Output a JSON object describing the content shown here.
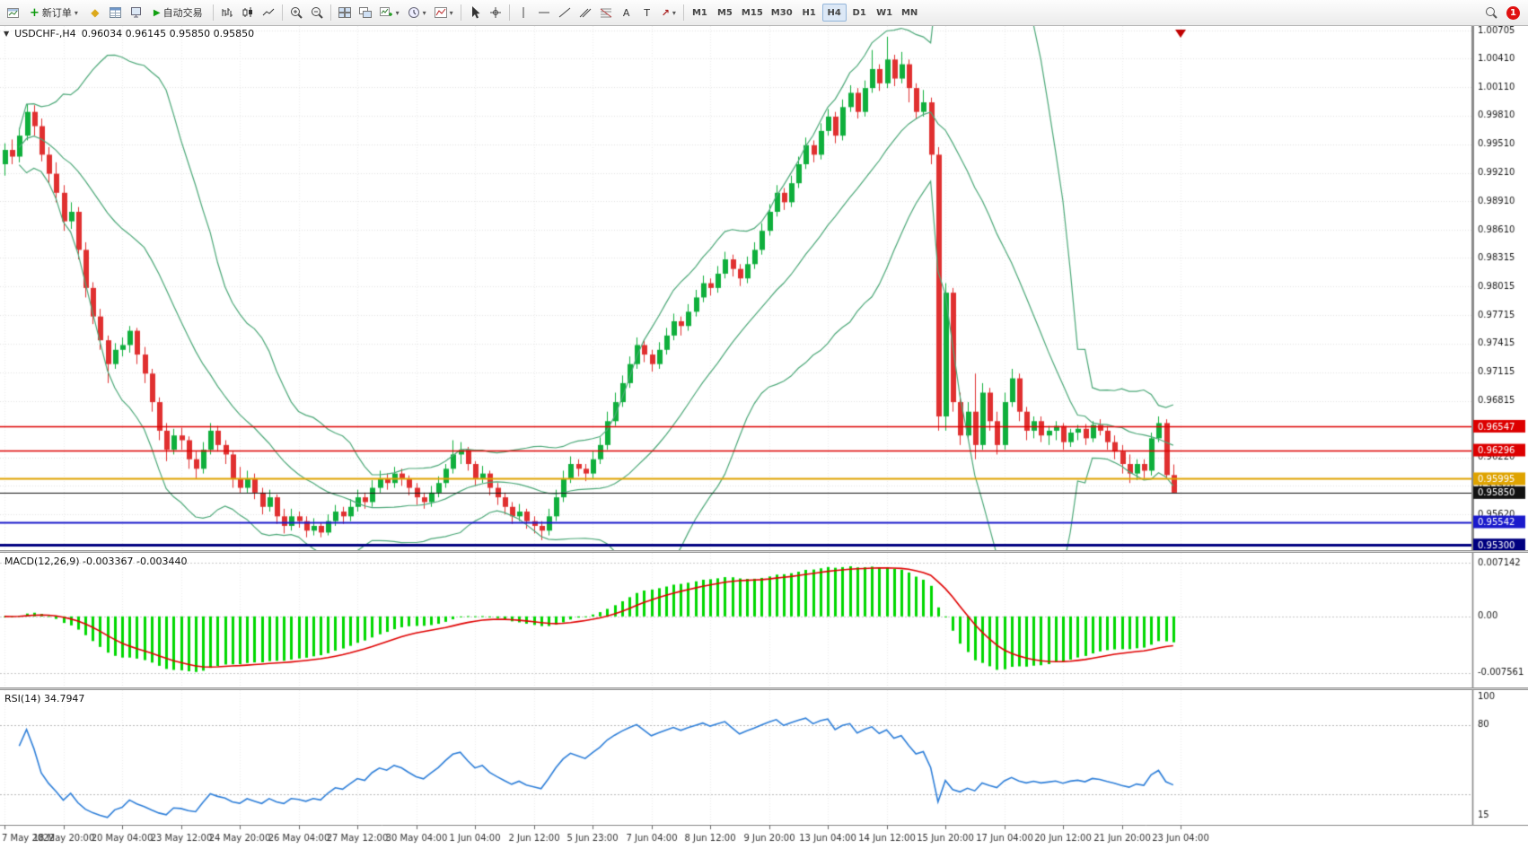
{
  "toolbar": {
    "new_order_label": "新订单",
    "autotrading_label": "自动交易",
    "timeframes": [
      "M1",
      "M5",
      "M15",
      "M30",
      "H1",
      "H4",
      "D1",
      "W1",
      "MN"
    ],
    "active_timeframe": "H4",
    "text_tool": "A",
    "label_tool": "T",
    "notification_count": "1",
    "caret_glyph": "▾",
    "play_glyph": "▶",
    "plus_glyph": "+",
    "diamond_glyph": "◆",
    "arrow_glyph": "↗",
    "collapse_glyph": "▼"
  },
  "chart_data": {
    "type": "candlestick",
    "symbol": "USDCHF-,H4",
    "ohlc_line": "0.96034 0.96145 0.95850 0.95850",
    "price_scale_labels": [
      "1.00705",
      "1.00410",
      "1.00110",
      "0.99810",
      "0.99510",
      "0.99210",
      "0.98910",
      "0.98610",
      "0.98315",
      "0.98015",
      "0.97715",
      "0.97415",
      "0.97115",
      "0.96815",
      "0.96220",
      "0.95920",
      "0.95620"
    ],
    "price_range": {
      "max": 1.00752,
      "min": 0.95245
    },
    "hlines": [
      {
        "price": 0.96547,
        "label": "0.96547",
        "color": "#dd0000",
        "width": 1.5
      },
      {
        "price": 0.96296,
        "label": "0.96296",
        "color": "#dd0000",
        "width": 1.5
      },
      {
        "price": 0.95995,
        "label": "0.95995",
        "color": "#dfa300",
        "width": 2
      },
      {
        "price": 0.9585,
        "label": "0.95850",
        "color": "#111111",
        "width": 1
      },
      {
        "price": 0.95542,
        "label": "0.95542",
        "color": "#1a1acc",
        "width": 2
      },
      {
        "price": 0.953,
        "label": "0.95300",
        "color": "#000080",
        "width": 3
      }
    ],
    "colors": {
      "up": "#0faf3c",
      "down": "#e03030",
      "band": "#4ca878",
      "grid": "#e4e4e4",
      "macd_hist": "#00d800",
      "macd_signal": "#e00000",
      "rsi_line": "#2e7fd9"
    },
    "indicators": {
      "bollinger": {
        "period": 20,
        "deviation": 2
      },
      "macd": {
        "label": "MACD(12,26,9) -0.003367 -0.003440",
        "fast": 12,
        "slow": 26,
        "signal": 9,
        "scale_top": "0.007142",
        "scale_zero": "0.00",
        "scale_bottom": "-0.007561",
        "range": {
          "max": 0.0085,
          "min": -0.0095
        }
      },
      "rsi": {
        "label": "RSI(14) 34.7947",
        "period": 14,
        "levels": [
          80,
          30
        ],
        "scale_top": "100",
        "scale_mid": "80",
        "scale_bottom": "15",
        "range": {
          "max": 105,
          "min": 8
        }
      }
    },
    "time_axis": [
      "7 May 2022",
      "18 May 20:00",
      "20 May 04:00",
      "23 May 12:00",
      "24 May 20:00",
      "26 May 04:00",
      "27 May 12:00",
      "30 May 04:00",
      "1 Jun 04:00",
      "2 Jun 12:00",
      "5 Jun 23:00",
      "7 Jun 04:00",
      "8 Jun 12:00",
      "9 Jun 20:00",
      "13 Jun 04:00",
      "14 Jun 12:00",
      "15 Jun 20:00",
      "17 Jun 04:00",
      "20 Jun 12:00",
      "21 Jun 20:00",
      "23 Jun 04:00"
    ],
    "candles": [
      [
        0.993,
        0.9952,
        0.9918,
        0.9945
      ],
      [
        0.9945,
        0.9956,
        0.993,
        0.9938
      ],
      [
        0.9938,
        0.9968,
        0.9932,
        0.996
      ],
      [
        0.996,
        0.9993,
        0.9955,
        0.9985
      ],
      [
        0.9985,
        0.9992,
        0.996,
        0.997
      ],
      [
        0.997,
        0.9978,
        0.9933,
        0.994
      ],
      [
        0.994,
        0.9948,
        0.991,
        0.992
      ],
      [
        0.992,
        0.9932,
        0.989,
        0.99
      ],
      [
        0.99,
        0.9908,
        0.986,
        0.987
      ],
      [
        0.987,
        0.989,
        0.9862,
        0.988
      ],
      [
        0.988,
        0.9885,
        0.983,
        0.984
      ],
      [
        0.984,
        0.9848,
        0.979,
        0.98
      ],
      [
        0.98,
        0.9806,
        0.9762,
        0.977
      ],
      [
        0.977,
        0.9778,
        0.9735,
        0.9745
      ],
      [
        0.9745,
        0.975,
        0.97,
        0.972
      ],
      [
        0.972,
        0.9742,
        0.9715,
        0.9735
      ],
      [
        0.9735,
        0.9748,
        0.9728,
        0.974
      ],
      [
        0.974,
        0.976,
        0.9732,
        0.9755
      ],
      [
        0.9755,
        0.9758,
        0.972,
        0.973
      ],
      [
        0.973,
        0.9738,
        0.97,
        0.971
      ],
      [
        0.971,
        0.9715,
        0.967,
        0.968
      ],
      [
        0.968,
        0.9685,
        0.964,
        0.965
      ],
      [
        0.965,
        0.9658,
        0.9618,
        0.963
      ],
      [
        0.963,
        0.9652,
        0.9625,
        0.9645
      ],
      [
        0.9645,
        0.9653,
        0.963,
        0.964
      ],
      [
        0.964,
        0.9644,
        0.961,
        0.962
      ],
      [
        0.962,
        0.9628,
        0.96,
        0.961
      ],
      [
        0.961,
        0.9638,
        0.9605,
        0.963
      ],
      [
        0.963,
        0.9658,
        0.9625,
        0.965
      ],
      [
        0.965,
        0.9655,
        0.9628,
        0.9635
      ],
      [
        0.9635,
        0.964,
        0.9615,
        0.9625
      ],
      [
        0.9625,
        0.9628,
        0.959,
        0.96
      ],
      [
        0.96,
        0.9612,
        0.9585,
        0.959
      ],
      [
        0.959,
        0.9608,
        0.9585,
        0.96
      ],
      [
        0.96,
        0.9605,
        0.9578,
        0.9585
      ],
      [
        0.9585,
        0.959,
        0.9562,
        0.957
      ],
      [
        0.957,
        0.9588,
        0.9565,
        0.958
      ],
      [
        0.958,
        0.9583,
        0.9552,
        0.956
      ],
      [
        0.956,
        0.9568,
        0.9542,
        0.955
      ],
      [
        0.955,
        0.9568,
        0.9545,
        0.956
      ],
      [
        0.956,
        0.9565,
        0.9548,
        0.9555
      ],
      [
        0.9555,
        0.956,
        0.9538,
        0.9545
      ],
      [
        0.9545,
        0.9558,
        0.954,
        0.955
      ],
      [
        0.955,
        0.9553,
        0.9538,
        0.9543
      ],
      [
        0.9543,
        0.9562,
        0.954,
        0.9555
      ],
      [
        0.9555,
        0.9572,
        0.955,
        0.9565
      ],
      [
        0.9565,
        0.957,
        0.9552,
        0.956
      ],
      [
        0.956,
        0.9578,
        0.9555,
        0.957
      ],
      [
        0.957,
        0.9588,
        0.9565,
        0.958
      ],
      [
        0.958,
        0.9585,
        0.9568,
        0.9575
      ],
      [
        0.9575,
        0.9598,
        0.957,
        0.959
      ],
      [
        0.959,
        0.9608,
        0.9585,
        0.96
      ],
      [
        0.96,
        0.9605,
        0.9588,
        0.9595
      ],
      [
        0.9595,
        0.9612,
        0.959,
        0.9605
      ],
      [
        0.9605,
        0.961,
        0.9592,
        0.96
      ],
      [
        0.96,
        0.9603,
        0.9582,
        0.959
      ],
      [
        0.959,
        0.9595,
        0.9572,
        0.958
      ],
      [
        0.958,
        0.9585,
        0.9568,
        0.9575
      ],
      [
        0.9575,
        0.9592,
        0.957,
        0.9585
      ],
      [
        0.9585,
        0.9602,
        0.958,
        0.9595
      ],
      [
        0.9595,
        0.9615,
        0.959,
        0.961
      ],
      [
        0.961,
        0.964,
        0.9605,
        0.9625
      ],
      [
        0.9625,
        0.9638,
        0.9615,
        0.963
      ],
      [
        0.963,
        0.9633,
        0.9608,
        0.9615
      ],
      [
        0.9615,
        0.9618,
        0.9592,
        0.96
      ],
      [
        0.96,
        0.9613,
        0.9595,
        0.9605
      ],
      [
        0.9605,
        0.9608,
        0.9582,
        0.959
      ],
      [
        0.959,
        0.9595,
        0.9572,
        0.958
      ],
      [
        0.958,
        0.9585,
        0.9562,
        0.957
      ],
      [
        0.957,
        0.9575,
        0.9552,
        0.956
      ],
      [
        0.956,
        0.9573,
        0.9555,
        0.9565
      ],
      [
        0.9565,
        0.9568,
        0.9547,
        0.9555
      ],
      [
        0.9555,
        0.956,
        0.9542,
        0.955
      ],
      [
        0.955,
        0.9555,
        0.9535,
        0.9545
      ],
      [
        0.9545,
        0.9568,
        0.954,
        0.956
      ],
      [
        0.956,
        0.9588,
        0.9555,
        0.958
      ],
      [
        0.958,
        0.9608,
        0.9575,
        0.96
      ],
      [
        0.96,
        0.9623,
        0.9595,
        0.9615
      ],
      [
        0.9615,
        0.962,
        0.9602,
        0.961
      ],
      [
        0.961,
        0.9615,
        0.9597,
        0.9605
      ],
      [
        0.9605,
        0.9628,
        0.96,
        0.962
      ],
      [
        0.962,
        0.9643,
        0.9615,
        0.9635
      ],
      [
        0.9635,
        0.967,
        0.963,
        0.966
      ],
      [
        0.966,
        0.969,
        0.9655,
        0.968
      ],
      [
        0.968,
        0.9708,
        0.9675,
        0.97
      ],
      [
        0.97,
        0.9728,
        0.9695,
        0.972
      ],
      [
        0.972,
        0.9748,
        0.9715,
        0.974
      ],
      [
        0.974,
        0.9745,
        0.9722,
        0.973
      ],
      [
        0.973,
        0.9735,
        0.9712,
        0.972
      ],
      [
        0.972,
        0.9743,
        0.9715,
        0.9735
      ],
      [
        0.9735,
        0.9758,
        0.973,
        0.975
      ],
      [
        0.975,
        0.9773,
        0.9745,
        0.9765
      ],
      [
        0.9765,
        0.977,
        0.975,
        0.976
      ],
      [
        0.976,
        0.9783,
        0.9755,
        0.9775
      ],
      [
        0.9775,
        0.9798,
        0.977,
        0.979
      ],
      [
        0.979,
        0.9813,
        0.9785,
        0.9805
      ],
      [
        0.9805,
        0.981,
        0.9792,
        0.98
      ],
      [
        0.98,
        0.9823,
        0.9795,
        0.9815
      ],
      [
        0.9815,
        0.9838,
        0.981,
        0.983
      ],
      [
        0.983,
        0.9835,
        0.9812,
        0.982
      ],
      [
        0.982,
        0.9825,
        0.9802,
        0.981
      ],
      [
        0.981,
        0.9833,
        0.9805,
        0.9825
      ],
      [
        0.9825,
        0.9848,
        0.982,
        0.984
      ],
      [
        0.984,
        0.9868,
        0.9835,
        0.986
      ],
      [
        0.986,
        0.9888,
        0.9855,
        0.988
      ],
      [
        0.988,
        0.9908,
        0.9875,
        0.99
      ],
      [
        0.99,
        0.9905,
        0.9882,
        0.989
      ],
      [
        0.989,
        0.9918,
        0.9885,
        0.991
      ],
      [
        0.991,
        0.9938,
        0.9905,
        0.993
      ],
      [
        0.993,
        0.9958,
        0.9925,
        0.995
      ],
      [
        0.995,
        0.9955,
        0.9932,
        0.994
      ],
      [
        0.994,
        0.9973,
        0.9935,
        0.9965
      ],
      [
        0.9965,
        0.9988,
        0.996,
        0.998
      ],
      [
        0.998,
        0.9985,
        0.9952,
        0.996
      ],
      [
        0.996,
        0.9998,
        0.9955,
        0.999
      ],
      [
        0.999,
        1.0013,
        0.9985,
        1.0005
      ],
      [
        1.0005,
        1.001,
        0.9978,
        0.9985
      ],
      [
        0.9985,
        1.0018,
        0.998,
        1.001
      ],
      [
        1.001,
        1.005,
        1.0005,
        1.003
      ],
      [
        1.003,
        1.0035,
        1.0007,
        1.0015
      ],
      [
        1.0015,
        1.0064,
        1.001,
        1.004
      ],
      [
        1.004,
        1.0045,
        1.0012,
        1.002
      ],
      [
        1.002,
        1.0048,
        1.0015,
        1.0035
      ],
      [
        1.0035,
        1.004,
        0.9995,
        1.001
      ],
      [
        1.001,
        1.0015,
        0.9978,
        0.9985
      ],
      [
        0.9985,
        1.0008,
        0.998,
        0.9995
      ],
      [
        0.9995,
        1,
        0.993,
        0.994
      ],
      [
        0.994,
        0.9948,
        0.965,
        0.9665
      ],
      [
        0.9665,
        0.9805,
        0.965,
        0.9795
      ],
      [
        0.9795,
        0.98,
        0.967,
        0.968
      ],
      [
        0.968,
        0.969,
        0.9635,
        0.9645
      ],
      [
        0.9645,
        0.968,
        0.964,
        0.967
      ],
      [
        0.967,
        0.971,
        0.962,
        0.9635
      ],
      [
        0.9635,
        0.97,
        0.963,
        0.969
      ],
      [
        0.969,
        0.9695,
        0.965,
        0.966
      ],
      [
        0.966,
        0.967,
        0.9625,
        0.9635
      ],
      [
        0.9635,
        0.969,
        0.963,
        0.968
      ],
      [
        0.968,
        0.9715,
        0.9675,
        0.9705
      ],
      [
        0.9705,
        0.971,
        0.966,
        0.967
      ],
      [
        0.967,
        0.9675,
        0.964,
        0.965
      ],
      [
        0.965,
        0.9665,
        0.9642,
        0.966
      ],
      [
        0.966,
        0.9665,
        0.9638,
        0.9645
      ],
      [
        0.9645,
        0.9655,
        0.9635,
        0.965
      ],
      [
        0.965,
        0.966,
        0.964,
        0.9655
      ],
      [
        0.9655,
        0.9658,
        0.963,
        0.9638
      ],
      [
        0.9638,
        0.9652,
        0.9633,
        0.9648
      ],
      [
        0.9648,
        0.9656,
        0.964,
        0.9652
      ],
      [
        0.9652,
        0.9657,
        0.9635,
        0.9642
      ],
      [
        0.9642,
        0.966,
        0.9638,
        0.9656
      ],
      [
        0.9656,
        0.9662,
        0.9645,
        0.965
      ],
      [
        0.965,
        0.9655,
        0.963,
        0.9638
      ],
      [
        0.9638,
        0.9645,
        0.962,
        0.9628
      ],
      [
        0.9628,
        0.9635,
        0.9605,
        0.9615
      ],
      [
        0.9615,
        0.9625,
        0.9595,
        0.9605
      ],
      [
        0.9605,
        0.962,
        0.9598,
        0.9615
      ],
      [
        0.9615,
        0.962,
        0.96,
        0.9608
      ],
      [
        0.9608,
        0.9648,
        0.9603,
        0.9642
      ],
      [
        0.9642,
        0.9665,
        0.9638,
        0.9658
      ],
      [
        0.9658,
        0.9662,
        0.9599,
        0.96034
      ],
      [
        0.96034,
        0.96145,
        0.9585,
        0.9585
      ]
    ]
  }
}
